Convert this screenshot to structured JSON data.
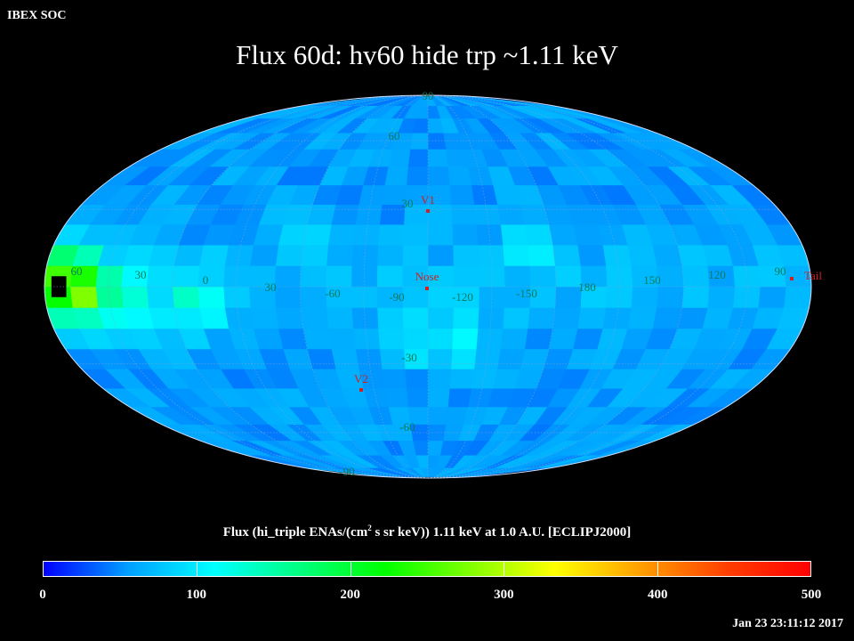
{
  "header": {
    "corner_label": "IBEX SOC",
    "title": "Flux   60d: hv60 hide trp ~1.11 keV"
  },
  "chart_data": {
    "type": "heatmap",
    "projection": "mollweide",
    "grid": true,
    "lat_labels": [
      "60",
      "30",
      "0",
      "-30",
      "-60",
      "-90",
      "90"
    ],
    "lon_labels": [
      "60",
      "30",
      "0",
      "30",
      "-60",
      "-90",
      "-120",
      "-150",
      "180",
      "150",
      "120",
      "90"
    ],
    "markers": [
      {
        "label": "V1",
        "lon_offset": 0,
        "lat": 33
      },
      {
        "label": "Nose",
        "lon_offset": 0,
        "lat": 0
      },
      {
        "label": "V2",
        "lon_offset": -30,
        "lat": -32
      },
      {
        "label": "Tail",
        "lon_offset": 178,
        "lat": 0
      }
    ],
    "flux_field": {
      "background": 55,
      "features": [
        {
          "lon": -50,
          "lat": 15,
          "amp": 35
        },
        {
          "lon": -20,
          "lat": -20,
          "amp": 40
        },
        {
          "lon": 5,
          "lat": -18,
          "amp": 45
        },
        {
          "lon": 60,
          "lat": 20,
          "amp": 25
        },
        {
          "lon": 110,
          "lat": -5,
          "amp": 70
        },
        {
          "lon": 145,
          "lat": -5,
          "amp": 85
        },
        {
          "lon": 165,
          "lat": -3,
          "amp": 120
        },
        {
          "lon": 172,
          "lat": 3,
          "amp": 140
        }
      ]
    },
    "colorbar": {
      "label": "Flux (hi_triple ENAs/(cm",
      "label_sup": "2",
      "label_rest": " s sr keV))  1.11 keV at 1.0 A.U. [ECLIPJ2000]",
      "min": 0,
      "max": 500,
      "ticks": [
        "0",
        "100",
        "200",
        "300",
        "400",
        "500"
      ],
      "tick_values": [
        0,
        100,
        200,
        300,
        400,
        500
      ],
      "colors": [
        "#0000ff",
        "#00a0ff",
        "#00ffff",
        "#00ff80",
        "#00ff00",
        "#80ff00",
        "#ffff00",
        "#ffa000",
        "#ff4000",
        "#ff0000"
      ]
    }
  },
  "footer": {
    "timestamp": "Jan 23 23:11:12 2017"
  }
}
